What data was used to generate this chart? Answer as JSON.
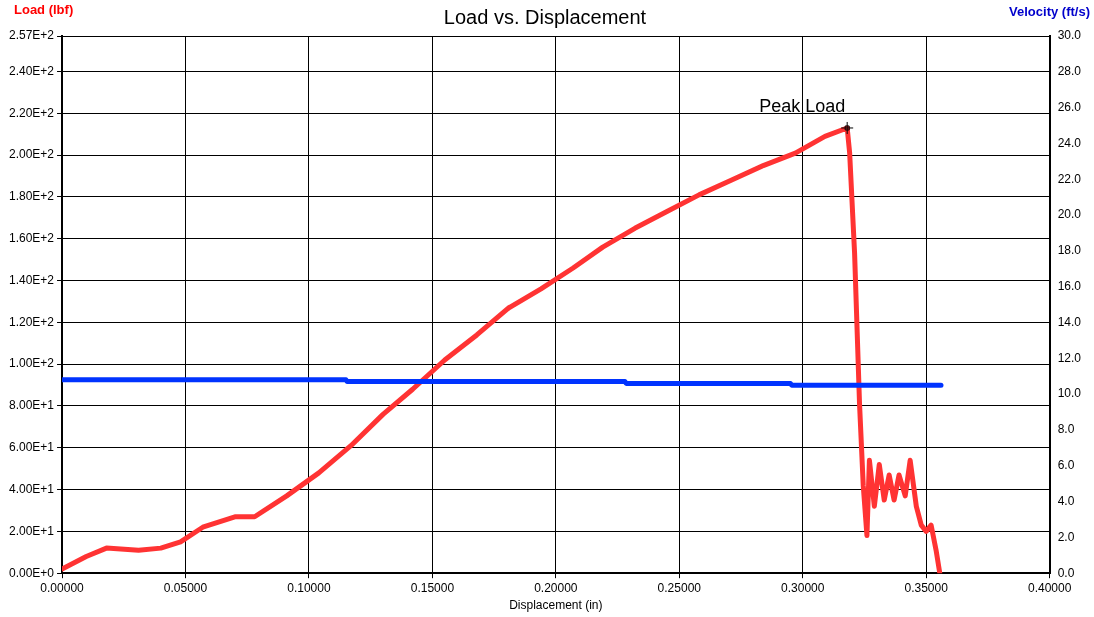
{
  "chart_data": {
    "type": "line",
    "title": "Load vs. Displacement",
    "xlabel": "Displacement (in)",
    "ylabel": "Load (lbf)",
    "y2label": "Velocity (ft/s)",
    "xlim": [
      0,
      0.4
    ],
    "xticks": [
      {
        "value": 0,
        "label": "0.00000"
      },
      {
        "value": 0.05,
        "label": "0.05000"
      },
      {
        "value": 0.1,
        "label": "0.10000"
      },
      {
        "value": 0.15,
        "label": "0.15000"
      },
      {
        "value": 0.2,
        "label": "0.20000"
      },
      {
        "value": 0.25,
        "label": "0.25000"
      },
      {
        "value": 0.3,
        "label": "0.30000"
      },
      {
        "value": 0.35,
        "label": "0.35000"
      },
      {
        "value": 0.4,
        "label": "0.40000"
      }
    ],
    "ylim": [
      0,
      257
    ],
    "yticks": [
      {
        "value": 0,
        "label": "0.00E+0"
      },
      {
        "value": 20,
        "label": "2.00E+1"
      },
      {
        "value": 40,
        "label": "4.00E+1"
      },
      {
        "value": 60,
        "label": "6.00E+1"
      },
      {
        "value": 80,
        "label": "8.00E+1"
      },
      {
        "value": 100,
        "label": "1.00E+2"
      },
      {
        "value": 120,
        "label": "1.20E+2"
      },
      {
        "value": 140,
        "label": "1.40E+2"
      },
      {
        "value": 160,
        "label": "1.60E+2"
      },
      {
        "value": 180,
        "label": "1.80E+2"
      },
      {
        "value": 200,
        "label": "2.00E+2"
      },
      {
        "value": 220,
        "label": "2.20E+2"
      },
      {
        "value": 240,
        "label": "2.40E+2"
      },
      {
        "value": 257,
        "label": "2.57E+2"
      }
    ],
    "y2lim": [
      0,
      30
    ],
    "y2ticks": [
      {
        "value": 0,
        "label": "0.0"
      },
      {
        "value": 2,
        "label": "2.0"
      },
      {
        "value": 4,
        "label": "4.0"
      },
      {
        "value": 6,
        "label": "6.0"
      },
      {
        "value": 8,
        "label": "8.0"
      },
      {
        "value": 10,
        "label": "10.0"
      },
      {
        "value": 12,
        "label": "12.0"
      },
      {
        "value": 14,
        "label": "14.0"
      },
      {
        "value": 16,
        "label": "16.0"
      },
      {
        "value": 18,
        "label": "18.0"
      },
      {
        "value": 20,
        "label": "20.0"
      },
      {
        "value": 22,
        "label": "22.0"
      },
      {
        "value": 24,
        "label": "24.0"
      },
      {
        "value": 26,
        "label": "26.0"
      },
      {
        "value": 28,
        "label": "28.0"
      },
      {
        "value": 30,
        "label": "30.0"
      }
    ],
    "grid": true,
    "legend": false,
    "marker": "none",
    "line_style": "solid",
    "annotations": [
      {
        "text": "Peak Load",
        "x": 0.318,
        "y": 213
      }
    ],
    "series": [
      {
        "color": "#0033ff",
        "axis": "y2",
        "x": [
          0,
          0.115,
          0.1155,
          0.228,
          0.2285,
          0.295,
          0.2955,
          0.356
        ],
        "values": [
          10.8,
          10.8,
          10.7,
          10.7,
          10.6,
          10.6,
          10.5,
          10.5
        ]
      },
      {
        "color": "#ff3333",
        "x": [
          0,
          0.0098,
          0.018,
          0.031,
          0.04,
          0.048,
          0.057,
          0.07,
          0.078,
          0.091,
          0.104,
          0.117,
          0.13,
          0.142,
          0.155,
          0.168,
          0.181,
          0.194,
          0.207,
          0.219,
          0.232,
          0.245,
          0.258,
          0.271,
          0.284,
          0.297,
          0.309,
          0.318,
          0.319,
          0.321,
          0.323,
          0.3245,
          0.326,
          0.327,
          0.329,
          0.331,
          0.333,
          0.335,
          0.337,
          0.339,
          0.3415,
          0.3435,
          0.346,
          0.348,
          0.35,
          0.352,
          0.354,
          0.3555
        ],
        "values": [
          2,
          8,
          12,
          11,
          12,
          15,
          22,
          27,
          27,
          37,
          48,
          61,
          76,
          88,
          102,
          114,
          127,
          136,
          146,
          156,
          165,
          173,
          181,
          188,
          195,
          201,
          209,
          213,
          201,
          153,
          81,
          42,
          18,
          54,
          32,
          52,
          35,
          47,
          35,
          47,
          37,
          54,
          32,
          23,
          20,
          23,
          11,
          0
        ]
      }
    ]
  }
}
